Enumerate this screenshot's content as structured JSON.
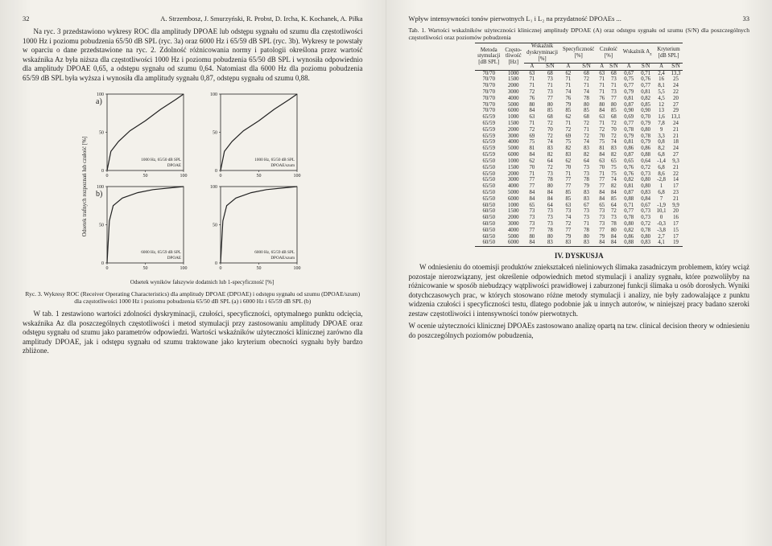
{
  "left": {
    "page_num": "32",
    "running_head": "A. Strzembosz, J. Smurzyński, R. Probst, D. Ircha, K. Kochanek, A. Piłka",
    "para1": "Na ryc. 3 przedstawiono wykresy ROC dla amplitudy DPOAE lub odstępu sygnału od szumu dla częstotliwości 1000 Hz i poziomu pobudzenia 65/50 dB SPL (ryc. 3a) oraz 6000 Hz i 65/59 dB SPL (ryc. 3b). Wykresy te powstały w oparciu o dane przedstawione na ryc. 2. Zdolność różnicowania normy i patologii określona przez wartość wskaźnika Az była niższa dla częstotliwości 1000 Hz i poziomu pobudzenia 65/50 dB SPL i wynosiła odpowiednio dla amplitudy DPOAE 0,65, a odstępu sygnału od szumu 0,64. Natomiast dla 6000 Hz dla poziomu pobudzenia 65/59 dB SPL była wyższa i wynosiła dla amplitudy sygnału 0,87, odstępu sygnału od szumu 0,88.",
    "fig": {
      "panel_a_label": "a)",
      "panel_b_label": "b)",
      "y_label": "Odsetek trafnych rozpoznań lub czułość [%]",
      "x_label": "Odsetek wyników fałszywie dodatnich lub 1-specyficzność [%]",
      "legend_a_left": "1000 Hz, 65/50 dB SPL\nDPOAE",
      "legend_a_right": "1000 Hz, 65/50 dB SPL\nDPOAE/szum",
      "legend_b_left": "6000 Hz, 65/59 dB SPL\nDPOAE",
      "legend_b_right": "6000 Hz, 65/59 dB SPL\nDPOAE/szum",
      "ticks": [
        0,
        50,
        100
      ],
      "line_color": "#222222",
      "bg_color": "#f3f1eb",
      "curve_a": [
        [
          0,
          0
        ],
        [
          5,
          25
        ],
        [
          15,
          38
        ],
        [
          30,
          52
        ],
        [
          50,
          65
        ],
        [
          70,
          80
        ],
        [
          90,
          93
        ],
        [
          100,
          100
        ]
      ],
      "curve_b": [
        [
          0,
          0
        ],
        [
          3,
          55
        ],
        [
          8,
          75
        ],
        [
          20,
          85
        ],
        [
          40,
          92
        ],
        [
          60,
          96
        ],
        [
          100,
          100
        ]
      ]
    },
    "caption": "Ryc. 3. Wykresy ROC (Receiver Operating Characteristics) dla amplitudy DPOAE (DPOAE) i odstępu sygnału od szumu (DPOAE/szum) dla częstotliwości 1000 Hz i poziomu pobudzenia 65/50 dB SPL (a) i 6000 Hz i 65/59 dB SPL (b)",
    "para2": "W tab. 1 zestawiono wartości zdolności dyskryminacji, czułości, specyficzności, optymalnego punktu odcięcia, wskaźnika Az dla poszczególnych częstotliwości i metod stymulacji przy zastosowaniu amplitudy DPOAE oraz odstępu sygnału od szumu jako parametrów odpowiedzi. Wartości wskaźników użyteczności klinicznej zarówno dla amplitudy DPOAE, jak i odstępu sygnału od szumu traktowane jako kryterium obecności sygnału były bardzo zbliżone."
  },
  "right": {
    "running_head": "Wpływ intensywności tonów pierwotnych L₁ i L₂ na przydatność DPOAEs ...",
    "page_num": "33",
    "table_caption": "Tab. 1. Wartości wskaźników użyteczności klinicznej amplitudy DPOAE (A) oraz odstępu sygnału od szumu (S/N) dla poszczególnych częstotliwości oraz poziomów pobudzenia",
    "columns": [
      "Metoda stymulacji [dB SPL]",
      "Często-tliwość [Hz]",
      "Wskaźnik dyskryminacji [%]",
      "",
      "Specyficzność [%]",
      "",
      "Czułość [%]",
      "",
      "Wskaźnik Az",
      "",
      "Kryterium [dB SPL]",
      ""
    ],
    "subcols": [
      "A",
      "S/N",
      "A",
      "S/N",
      "A",
      "S/N",
      "A",
      "S/N",
      "A",
      "S/N"
    ],
    "rows": [
      [
        "70/70",
        "1000",
        "63",
        "68",
        "62",
        "68",
        "63",
        "68",
        "0,67",
        "0,71",
        "2,4",
        "13,3"
      ],
      [
        "70/70",
        "1500",
        "71",
        "73",
        "71",
        "72",
        "71",
        "73",
        "0,75",
        "0,76",
        "16",
        "25"
      ],
      [
        "70/70",
        "2000",
        "71",
        "71",
        "71",
        "71",
        "71",
        "71",
        "0,77",
        "0,77",
        "8,1",
        "24"
      ],
      [
        "70/70",
        "3000",
        "72",
        "73",
        "74",
        "74",
        "71",
        "73",
        "0,79",
        "0,81",
        "5,5",
        "22"
      ],
      [
        "70/70",
        "4000",
        "76",
        "77",
        "76",
        "78",
        "76",
        "77",
        "0,81",
        "0,82",
        "4,5",
        "20"
      ],
      [
        "70/70",
        "5000",
        "80",
        "80",
        "79",
        "80",
        "80",
        "80",
        "0,87",
        "0,85",
        "12",
        "27"
      ],
      [
        "70/70",
        "6000",
        "84",
        "85",
        "85",
        "85",
        "84",
        "85",
        "0,90",
        "0,90",
        "13",
        "29"
      ],
      [
        "65/59",
        "1000",
        "63",
        "68",
        "62",
        "68",
        "63",
        "68",
        "0,69",
        "0,70",
        "1,6",
        "13,1"
      ],
      [
        "65/59",
        "1500",
        "71",
        "72",
        "71",
        "72",
        "71",
        "72",
        "0,77",
        "0,79",
        "7,8",
        "24"
      ],
      [
        "65/59",
        "2000",
        "72",
        "70",
        "72",
        "71",
        "72",
        "70",
        "0,78",
        "0,80",
        "9",
        "21"
      ],
      [
        "65/59",
        "3000",
        "69",
        "72",
        "69",
        "72",
        "70",
        "72",
        "0,79",
        "0,78",
        "3,3",
        "21"
      ],
      [
        "65/59",
        "4000",
        "75",
        "74",
        "75",
        "74",
        "75",
        "74",
        "0,81",
        "0,79",
        "0,8",
        "18"
      ],
      [
        "65/59",
        "5000",
        "81",
        "83",
        "82",
        "83",
        "81",
        "83",
        "0,86",
        "0,86",
        "8,2",
        "24"
      ],
      [
        "65/59",
        "6000",
        "84",
        "82",
        "83",
        "82",
        "84",
        "82",
        "0,87",
        "0,88",
        "6,8",
        "27"
      ],
      [
        "65/50",
        "1000",
        "62",
        "64",
        "62",
        "64",
        "63",
        "65",
        "0,65",
        "0,64",
        "-1,4",
        "9,3"
      ],
      [
        "65/50",
        "1500",
        "70",
        "72",
        "70",
        "73",
        "70",
        "75",
        "0,76",
        "0,72",
        "6,8",
        "21"
      ],
      [
        "65/50",
        "2000",
        "71",
        "73",
        "71",
        "73",
        "71",
        "75",
        "0,76",
        "0,73",
        "8,6",
        "22"
      ],
      [
        "65/50",
        "3000",
        "77",
        "78",
        "77",
        "78",
        "77",
        "74",
        "0,82",
        "0,80",
        "-2,8",
        "14"
      ],
      [
        "65/50",
        "4000",
        "77",
        "80",
        "77",
        "79",
        "77",
        "82",
        "0,81",
        "0,80",
        "1",
        "17"
      ],
      [
        "65/50",
        "5000",
        "84",
        "84",
        "85",
        "83",
        "84",
        "84",
        "0,87",
        "0,83",
        "6,8",
        "23"
      ],
      [
        "65/50",
        "6000",
        "84",
        "84",
        "85",
        "83",
        "84",
        "85",
        "0,88",
        "0,84",
        "7",
        "21"
      ],
      [
        "60/50",
        "1000",
        "65",
        "64",
        "63",
        "67",
        "65",
        "64",
        "0,71",
        "0,67",
        "-1,9",
        "9,9"
      ],
      [
        "60/50",
        "1500",
        "73",
        "73",
        "73",
        "73",
        "73",
        "72",
        "0,77",
        "0,73",
        "10,1",
        "20"
      ],
      [
        "60/50",
        "2000",
        "73",
        "73",
        "74",
        "73",
        "73",
        "73",
        "0,78",
        "0,73",
        "0",
        "16"
      ],
      [
        "60/50",
        "3000",
        "73",
        "73",
        "72",
        "71",
        "73",
        "78",
        "0,80",
        "0,72",
        "-0,3",
        "17"
      ],
      [
        "60/50",
        "4000",
        "77",
        "78",
        "77",
        "78",
        "77",
        "80",
        "0,82",
        "0,78",
        "-3,8",
        "15"
      ],
      [
        "60/50",
        "5000",
        "80",
        "80",
        "79",
        "80",
        "79",
        "84",
        "0,86",
        "0,80",
        "2,7",
        "17"
      ],
      [
        "60/50",
        "6000",
        "84",
        "83",
        "83",
        "83",
        "84",
        "84",
        "0,88",
        "0,83",
        "4,1",
        "19"
      ]
    ],
    "section_title": "IV. DYSKUSJA",
    "para1": "W odniesieniu do otoemisji produktów zniekształceń nieliniowych ślimaka zasadniczym problemem, który wciąż pozostaje nierozwiązany, jest określenie odpowiednich metod stymulacji i analizy sygnału, które pozwoliłyby na różnicowanie w sposób niebudzący wątpliwości prawidłowej i zaburzonej funkcji ślimaka u osób dorosłych. Wyniki dotychczasowych prac, w których stosowano różne metody stymulacji i analizy, nie były zadowalające z punktu widzenia czułości i specyficzności testu, dlatego podobnie jak u innych autorów, w niniejszej pracy badano szeroki zestaw częstotliwości i intensywności tonów pierwotnych.",
    "para2": "W ocenie użyteczności klinicznej DPOAEs zastosowano analizę opartą na tzw. clinical decision theory w odniesieniu do poszczególnych poziomów pobudzenia,"
  }
}
